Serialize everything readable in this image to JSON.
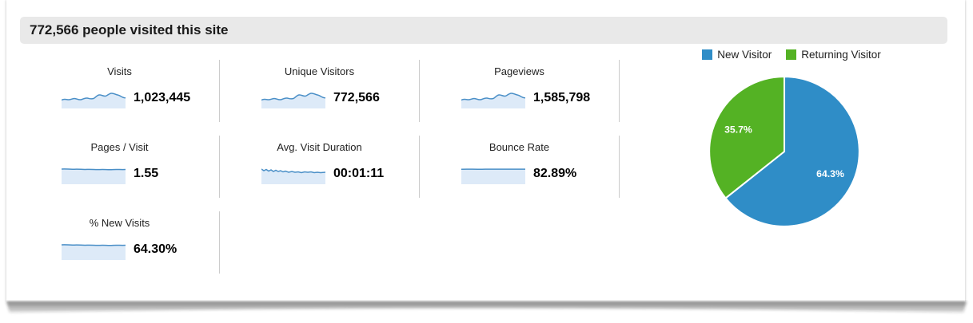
{
  "header": {
    "title": "772,566 people visited this site"
  },
  "metrics": [
    {
      "label": "Visits",
      "value": "1,023,445",
      "spark": "wavy"
    },
    {
      "label": "Unique Visitors",
      "value": "772,566",
      "spark": "wavy"
    },
    {
      "label": "Pageviews",
      "value": "1,585,798",
      "spark": "wavy"
    },
    {
      "label": "Pages / Visit",
      "value": "1.55",
      "spark": "gentle"
    },
    {
      "label": "Avg. Visit Duration",
      "value": "00:01:11",
      "spark": "jagged"
    },
    {
      "label": "Bounce Rate",
      "value": "82.89%",
      "spark": "flat"
    },
    {
      "label": "% New Visits",
      "value": "64.30%",
      "spark": "gentle"
    }
  ],
  "chart_data": {
    "type": "pie",
    "legend_position": "top",
    "labels": "percent-inside-slices",
    "slices": [
      {
        "label": "New Visitor",
        "value": 64.3,
        "display": "64.3%",
        "color": "#2f8dc7"
      },
      {
        "label": "Returning Visitor",
        "value": 35.7,
        "display": "35.7%",
        "color": "#54b224"
      }
    ]
  },
  "colors": {
    "sparkline_line": "#4a8fc7",
    "sparkline_fill": "#ddeaf8"
  }
}
